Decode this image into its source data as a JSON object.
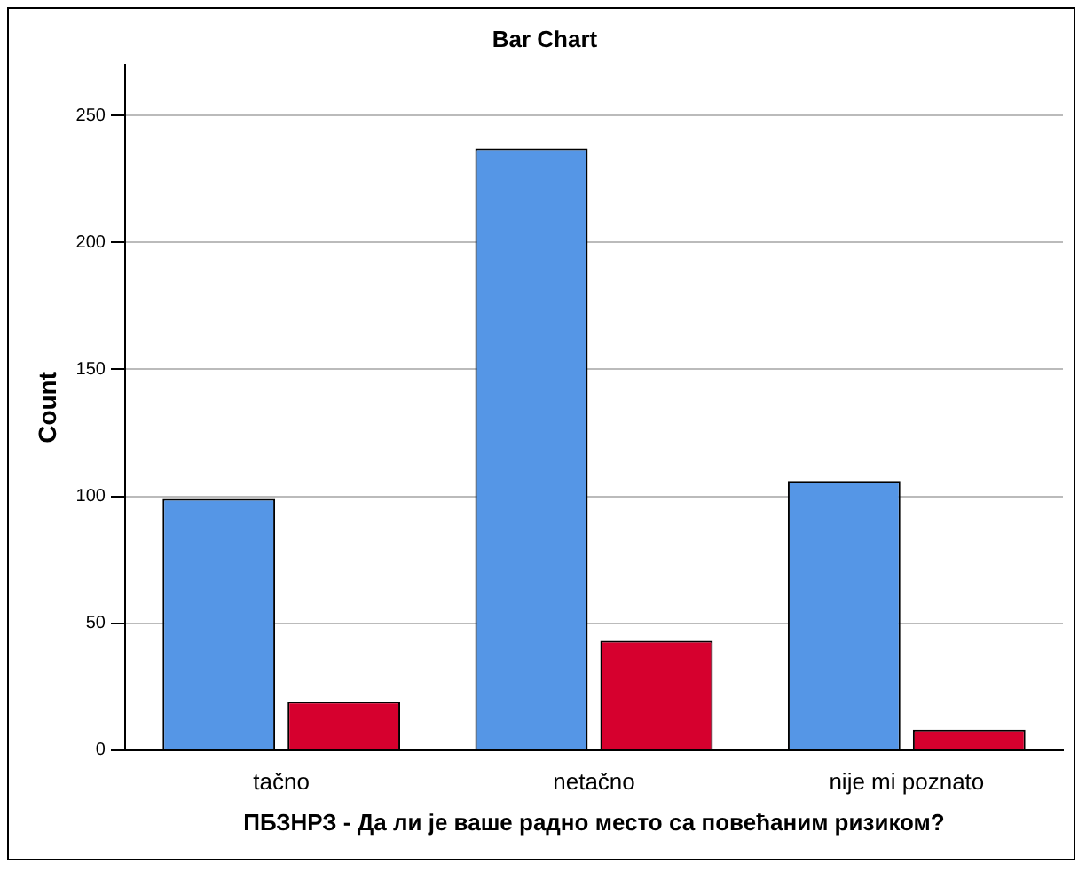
{
  "chart_data": {
    "type": "bar",
    "title": "Bar Chart",
    "xlabel": "ПБЗНРЗ - Да ли је ваше радно место са повећаним ризиком?",
    "ylabel": "Count",
    "categories": [
      "tačno",
      "netačno",
      "nije mi poznato"
    ],
    "series": [
      {
        "color": "#5596e6",
        "values": [
          99,
          237,
          106
        ]
      },
      {
        "color": "#d6002e",
        "values": [
          19,
          43,
          8
        ]
      }
    ],
    "ylim": [
      0,
      270
    ],
    "yticks": [
      0,
      50,
      100,
      150,
      200,
      250
    ],
    "grid": "y",
    "legend": false
  }
}
